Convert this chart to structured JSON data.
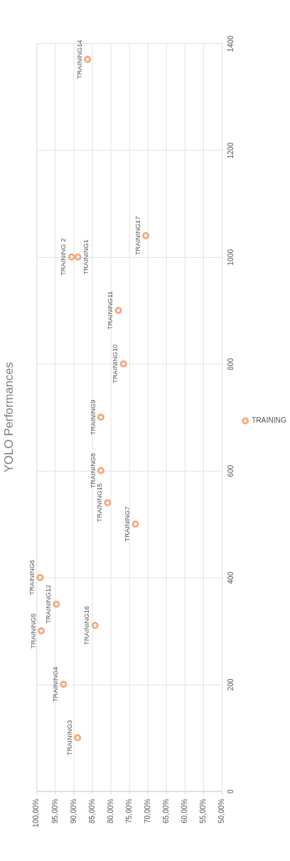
{
  "chart_data": {
    "type": "scatter",
    "title": "YOLO Performances",
    "x": [
      86.2,
      90.5,
      88.8,
      70.5,
      77.9,
      76.5,
      82.6,
      82.6,
      80.8,
      73.3,
      99.0,
      94.6,
      98.7,
      84.2,
      92.7,
      88.9
    ],
    "series": [
      {
        "name": "TRAINING",
        "color": "#f4a97a",
        "values": [
          1370,
          1000,
          1000,
          1040,
          900,
          800,
          700,
          600,
          540,
          500,
          400,
          350,
          300,
          310,
          200,
          100
        ],
        "value_labels": [
          "TRAINING14",
          "TRAINING 2",
          "TRAINING1",
          "TRAINING17",
          "TRAINING11",
          "TRAINING10",
          "TRAINING9",
          "TRAINING8",
          "TRAINING15",
          "TRAINING7",
          "TRAINING6",
          "TRAINING12",
          "TRAINING5",
          "TRAINING16",
          "TRAINING4",
          "TRAINING3"
        ]
      }
    ],
    "xlim": [
      100,
      50
    ],
    "xticks": [
      {
        "value": 100,
        "label": "100,00%"
      },
      {
        "value": 95,
        "label": "95,00%"
      },
      {
        "value": 90,
        "label": "90,00%"
      },
      {
        "value": 85,
        "label": "85,00%"
      },
      {
        "value": 80,
        "label": "80,00%"
      },
      {
        "value": 75,
        "label": "75,00%"
      },
      {
        "value": 70,
        "label": "70,00%"
      },
      {
        "value": 65,
        "label": "65,00%"
      },
      {
        "value": 60,
        "label": "60,00%"
      },
      {
        "value": 55,
        "label": "55,00%"
      },
      {
        "value": 50,
        "label": "50,00%"
      }
    ],
    "ylim": [
      0,
      1400
    ],
    "yticks": [
      0,
      200,
      400,
      600,
      800,
      1000,
      1200,
      1400
    ],
    "grid": true,
    "legend": "right",
    "marker": "circle"
  }
}
